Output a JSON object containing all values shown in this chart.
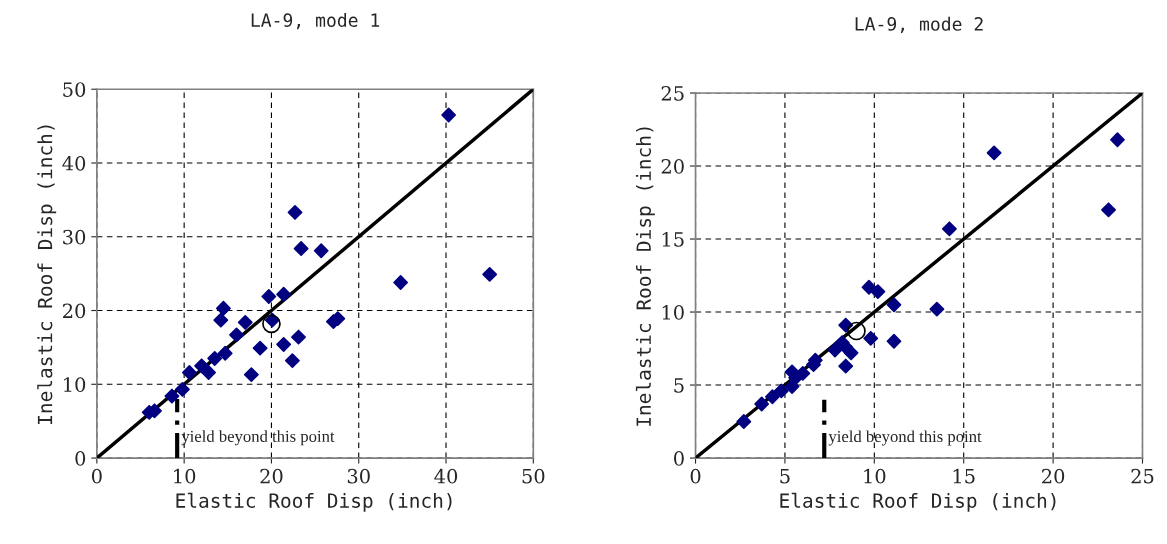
{
  "chart_data": [
    {
      "type": "scatter",
      "title": "LA-9, mode 1",
      "xlabel": "Elastic Roof Disp (inch)",
      "ylabel": "Inelastic Roof Disp (inch)",
      "xlim": [
        0,
        50
      ],
      "ylim": [
        0,
        50
      ],
      "xticks": [
        0,
        10,
        20,
        30,
        40,
        50
      ],
      "yticks": [
        0,
        10,
        20,
        30,
        40,
        50
      ],
      "grid": true,
      "legend": false,
      "series": [
        {
          "marker": "diamond",
          "color": "#000080",
          "x": [
            40.3,
            22.7,
            23.4,
            25.7,
            34.8,
            45.0,
            19.7,
            21.4,
            14.5,
            14.2,
            17.0,
            16.0,
            20.1,
            27.1,
            27.6,
            23.1,
            21.4,
            18.7,
            22.4,
            14.7,
            13.5,
            12.0,
            12.8,
            10.6,
            17.7,
            9.8,
            8.6,
            6.0,
            6.6
          ],
          "values": [
            46.5,
            33.3,
            28.4,
            28.1,
            23.8,
            24.9,
            21.9,
            22.2,
            20.3,
            18.7,
            18.4,
            16.7,
            18.7,
            18.5,
            18.9,
            16.4,
            15.4,
            14.9,
            13.2,
            14.2,
            13.5,
            12.5,
            11.6,
            11.6,
            11.3,
            9.3,
            8.4,
            6.2,
            6.4
          ]
        },
        {
          "marker": "circle",
          "color": "#000000",
          "x": [
            20.0
          ],
          "values": [
            18.2
          ]
        },
        {
          "type": "line",
          "color": "#000000",
          "x": [
            0,
            50
          ],
          "values": [
            0,
            50
          ]
        }
      ],
      "ref_lines": [
        {
          "axis": "x",
          "value": 9.2,
          "label": "yield beyond this point",
          "color": "#000000"
        }
      ]
    },
    {
      "type": "scatter",
      "title": "LA-9, mode 2",
      "xlabel": "Elastic Roof Disp (inch)",
      "ylabel": "Inelastic Roof Disp (inch)",
      "xlim": [
        0,
        25
      ],
      "ylim": [
        0,
        25
      ],
      "xticks": [
        0,
        5,
        10,
        15,
        20,
        25
      ],
      "yticks": [
        0,
        5,
        10,
        15,
        20,
        25
      ],
      "grid": true,
      "legend": false,
      "series": [
        {
          "marker": "diamond",
          "color": "#000080",
          "x": [
            23.6,
            16.7,
            23.1,
            14.2,
            9.7,
            10.2,
            11.1,
            13.5,
            8.4,
            9.8,
            11.1,
            8.2,
            7.8,
            8.7,
            8.4,
            8.4,
            6.7,
            6.6,
            6.0,
            5.4,
            5.6,
            5.4,
            4.8,
            4.3,
            3.7,
            2.7
          ],
          "values": [
            21.8,
            20.9,
            17.0,
            15.7,
            11.7,
            11.4,
            10.5,
            10.2,
            9.1,
            8.2,
            8.0,
            7.9,
            7.4,
            7.2,
            7.6,
            6.3,
            6.7,
            6.4,
            5.8,
            5.9,
            5.5,
            4.9,
            4.6,
            4.2,
            3.7,
            2.5
          ]
        },
        {
          "marker": "circle",
          "color": "#000000",
          "x": [
            9.0
          ],
          "values": [
            8.7
          ]
        },
        {
          "type": "line",
          "color": "#000000",
          "x": [
            0,
            25
          ],
          "values": [
            0,
            25
          ]
        }
      ],
      "ref_lines": [
        {
          "axis": "x",
          "value": 7.2,
          "label": "yield beyond this point",
          "color": "#000000"
        }
      ]
    }
  ]
}
